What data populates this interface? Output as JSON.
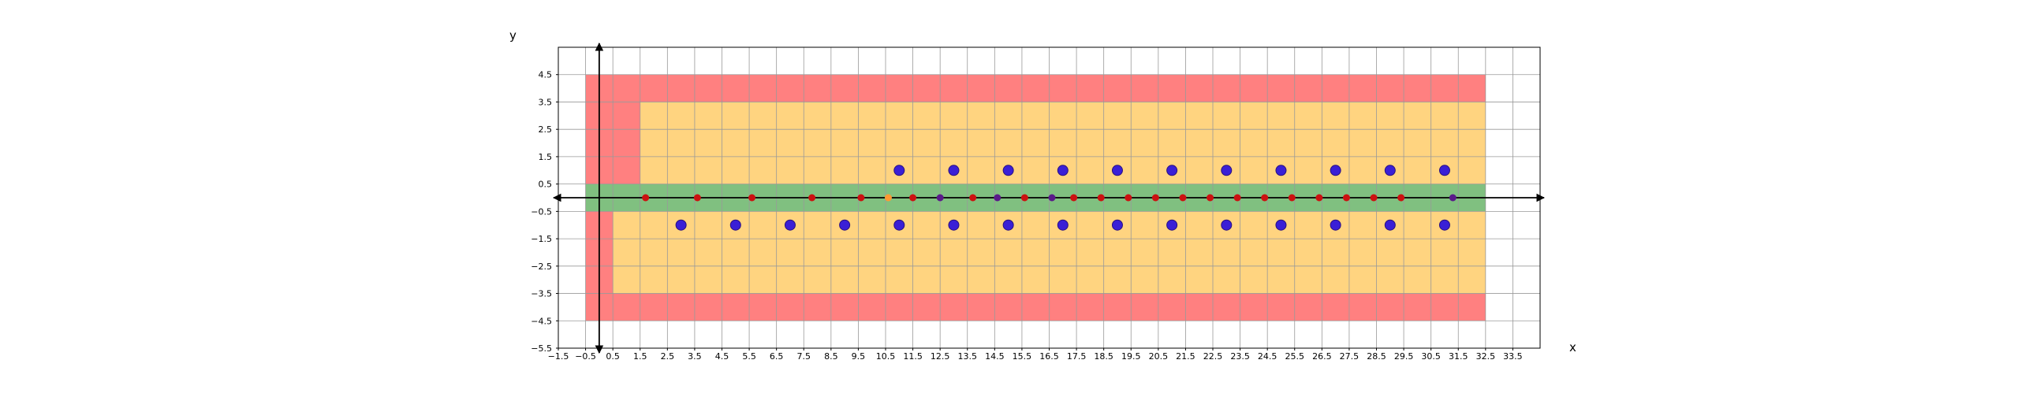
{
  "chart_data": {
    "type": "scatter",
    "xlabel": "x",
    "ylabel": "y",
    "xlim": [
      -1.5,
      34.5
    ],
    "ylim": [
      -5.5,
      5.5
    ],
    "grid": true,
    "x_ticks": [
      -1.5,
      -0.5,
      0.5,
      1.5,
      2.5,
      3.5,
      4.5,
      5.5,
      6.5,
      7.5,
      8.5,
      9.5,
      10.5,
      11.5,
      12.5,
      13.5,
      14.5,
      15.5,
      16.5,
      17.5,
      18.5,
      19.5,
      20.5,
      21.5,
      22.5,
      23.5,
      24.5,
      25.5,
      26.5,
      27.5,
      28.5,
      29.5,
      30.5,
      31.5,
      32.5,
      33.5
    ],
    "x_tick_labels": [
      "−1.5",
      "−0.5",
      "0.5",
      "1.5",
      "2.5",
      "3.5",
      "4.5",
      "5.5",
      "6.5",
      "7.5",
      "8.5",
      "9.5",
      "10.5",
      "11.5",
      "12.5",
      "13.5",
      "14.5",
      "15.5",
      "16.5",
      "17.5",
      "18.5",
      "19.5",
      "20.5",
      "21.5",
      "22.5",
      "23.5",
      "24.5",
      "25.5",
      "26.5",
      "27.5",
      "28.5",
      "29.5",
      "30.5",
      "31.5",
      "32.5",
      "33.5"
    ],
    "y_ticks": [
      -5.5,
      -4.5,
      -3.5,
      -2.5,
      -1.5,
      -0.5,
      0.5,
      1.5,
      2.5,
      3.5,
      4.5
    ],
    "y_tick_labels": [
      "−5.5",
      "−4.5",
      "−3.5",
      "−2.5",
      "−1.5",
      "−0.5",
      "0.5",
      "1.5",
      "2.5",
      "3.5",
      "4.5"
    ],
    "colors": {
      "red_region": "#ff8080",
      "yellow_region": "#ffd480",
      "green_region": "#80c080",
      "blue_point": "#3a1fd6",
      "red_point": "#cc1111",
      "purple_point": "#5a1a8a",
      "grid": "#999999"
    },
    "regions": [
      {
        "fill": "red",
        "x": [
          -0.5,
          32.5
        ],
        "y": [
          -4.5,
          4.5
        ]
      },
      {
        "fill": "yellow",
        "x": [
          1.5,
          32.5
        ],
        "y": [
          0.5,
          3.5
        ]
      },
      {
        "fill": "yellow",
        "x": [
          0.5,
          32.5
        ],
        "y": [
          -3.5,
          -0.5
        ]
      },
      {
        "fill": "green",
        "x": [
          -0.5,
          32.5
        ],
        "y": [
          -0.5,
          0.5
        ]
      }
    ],
    "series": [
      {
        "color": "blue",
        "size": "large",
        "x": [
          11,
          13,
          15,
          17,
          19,
          21,
          23,
          25,
          27,
          29,
          31,
          3,
          5,
          7,
          9,
          11,
          13,
          15,
          17,
          19,
          21,
          23,
          25,
          27,
          29,
          31
        ],
        "y": [
          1,
          1,
          1,
          1,
          1,
          1,
          1,
          1,
          1,
          1,
          1,
          -1,
          -1,
          -1,
          -1,
          -1,
          -1,
          -1,
          -1,
          -1,
          -1,
          -1,
          -1,
          -1,
          -1,
          -1
        ]
      },
      {
        "color": "red",
        "size": "small",
        "x": [
          1.7,
          3.6,
          5.6,
          7.8,
          9.6,
          11.5,
          13.7,
          15.6,
          17.4,
          18.4,
          19.4,
          20.4,
          21.4,
          22.4,
          23.4,
          24.4,
          25.4,
          26.4,
          27.4,
          28.4,
          29.4
        ],
        "y": [
          0,
          0,
          0,
          0,
          0,
          0,
          0,
          0,
          0,
          0,
          0,
          0,
          0,
          0,
          0,
          0,
          0,
          0,
          0,
          0,
          0
        ]
      },
      {
        "color": "purple",
        "size": "small",
        "x": [
          12.5,
          14.6,
          16.6,
          31.3
        ],
        "y": [
          0,
          0,
          0,
          0
        ]
      },
      {
        "color": "orange",
        "size": "small",
        "x": [
          10.6
        ],
        "y": [
          0
        ]
      }
    ]
  }
}
